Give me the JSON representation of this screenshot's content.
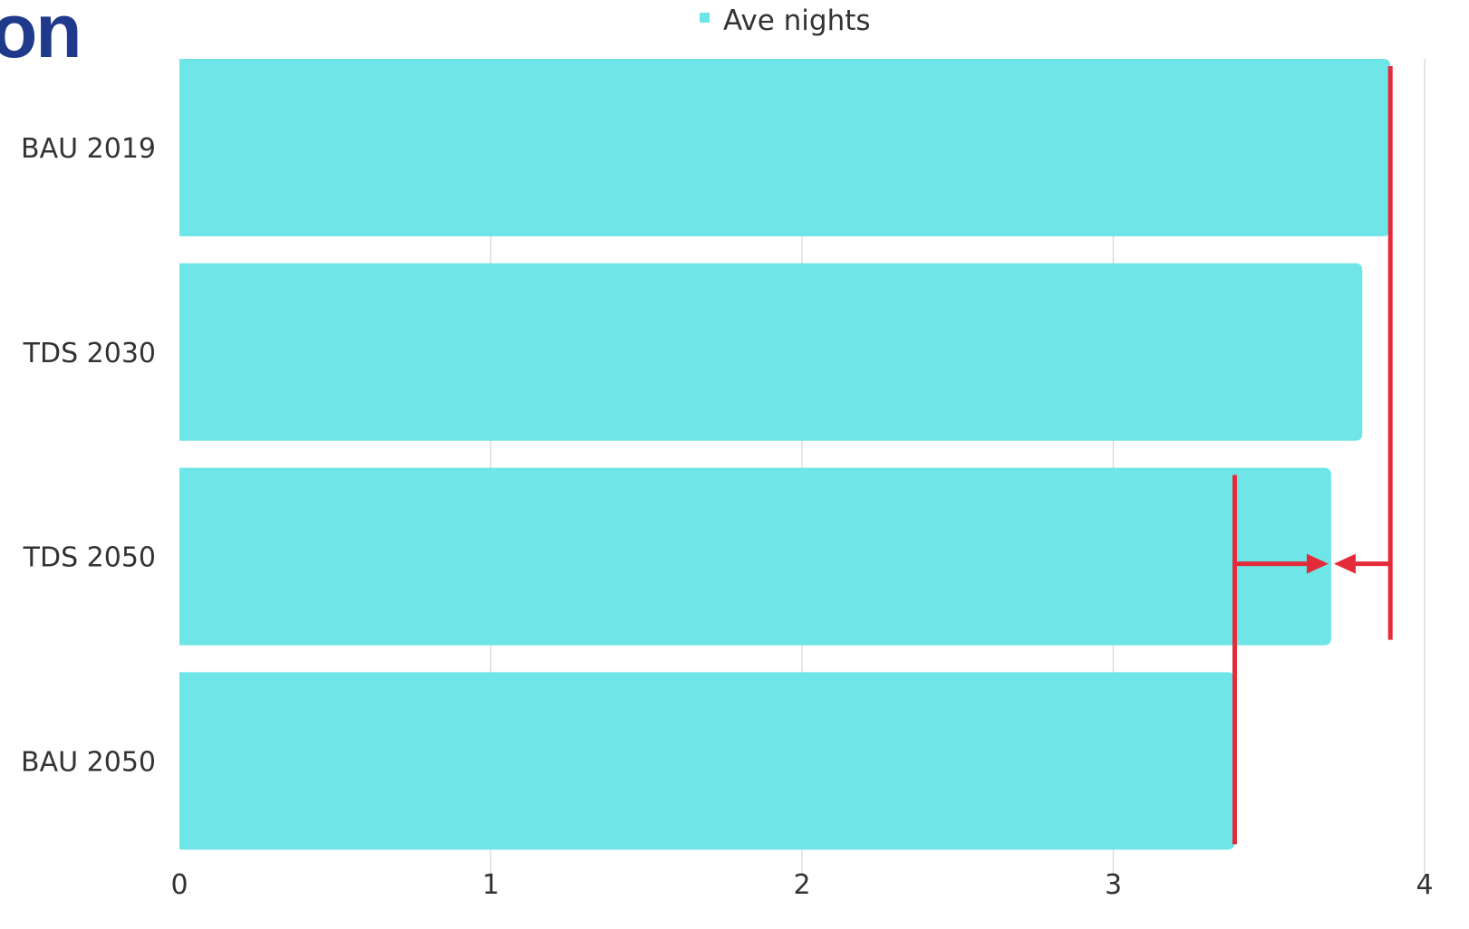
{
  "heading_fragment": "on",
  "chart_data": {
    "type": "bar",
    "orientation": "horizontal",
    "categories": [
      "BAU 2019",
      "TDS 2030",
      "TDS 2050",
      "BAU 2050"
    ],
    "series": [
      {
        "name": "Ave nights",
        "values": [
          3.89,
          3.8,
          3.7,
          3.39
        ],
        "color": "#6ee6e8"
      }
    ],
    "xlim": [
      0,
      4
    ],
    "x_ticks": [
      "0",
      "1",
      "2",
      "3",
      "4"
    ],
    "grid": true,
    "legend": "top-center",
    "annotations": {
      "color": "#e32b3a",
      "reference_lines": [
        {
          "value": 3.89,
          "from_category": "BAU 2019",
          "to_category": "TDS 2050"
        },
        {
          "value": 3.39,
          "from_category": "TDS 2050",
          "to_category": "BAU 2050"
        }
      ],
      "arrows": [
        {
          "category": "TDS 2050",
          "from": 3.39,
          "to": 3.7
        },
        {
          "category": "TDS 2050",
          "from": 3.89,
          "to": 3.7
        }
      ]
    }
  }
}
